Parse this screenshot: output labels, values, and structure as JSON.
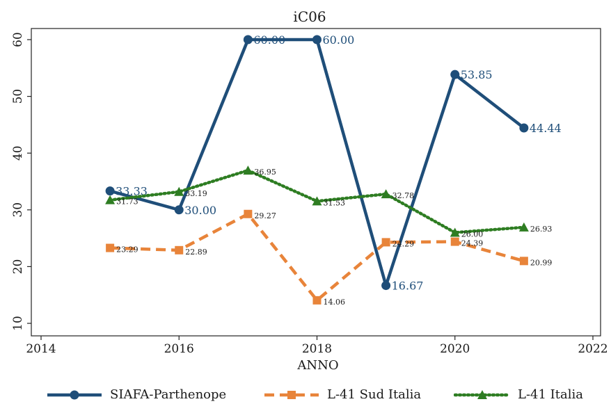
{
  "chart_data": {
    "type": "line",
    "title": "iC06",
    "xlabel": "ANNO",
    "ylabel": "",
    "xlim": [
      2014,
      2022
    ],
    "ylim": [
      10,
      60
    ],
    "xticks": [
      "2014",
      "2016",
      "2018",
      "2020",
      "2022"
    ],
    "yticks": [
      "10",
      "20",
      "30",
      "40",
      "50",
      "60"
    ],
    "grid": false,
    "legend": "bottom",
    "series": [
      {
        "name": "SIAFA-Parthenope",
        "color": "#1f4e79",
        "style": "solid",
        "marker": "circle",
        "x": [
          2015,
          2016,
          2017,
          2018,
          2019,
          2020,
          2021
        ],
        "values": [
          33.33,
          30.0,
          60.0,
          60.0,
          16.67,
          53.85,
          44.44
        ],
        "labels": [
          "33.33",
          "30.00",
          "60.00",
          "60.00",
          "16.67",
          "53.85",
          "44.44"
        ]
      },
      {
        "name": "L-41 Sud Italia",
        "color": "#e8843a",
        "style": "dashed",
        "marker": "square",
        "x": [
          2015,
          2016,
          2017,
          2018,
          2019,
          2020,
          2021
        ],
        "values": [
          23.29,
          22.89,
          29.27,
          14.06,
          24.29,
          24.39,
          20.99
        ],
        "labels": [
          "23.29",
          "22.89",
          "29.27",
          "14.06",
          "24.29",
          "24.39",
          "20.99"
        ]
      },
      {
        "name": "L-41 Italia",
        "color": "#2e7d22",
        "style": "dotted",
        "marker": "triangle",
        "x": [
          2015,
          2016,
          2017,
          2018,
          2019,
          2020,
          2021
        ],
        "values": [
          31.73,
          33.19,
          36.95,
          31.53,
          32.78,
          26.0,
          26.93
        ],
        "labels": [
          "31.73",
          "33.19",
          "36.95",
          "31.53",
          "32.78",
          "26.00",
          "26.93"
        ]
      }
    ]
  }
}
